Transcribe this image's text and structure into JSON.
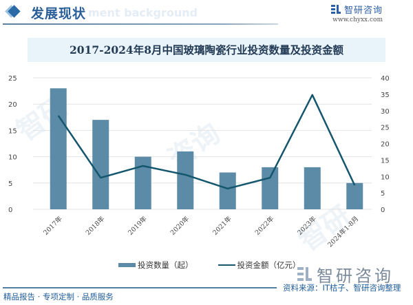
{
  "header": {
    "section_title": "发展现状",
    "section_subtitle": "ment background",
    "brand_name": "智研咨询",
    "brand_url": "www.chyxx.com"
  },
  "chart_title": "2017-2024年8月中国玻璃陶瓷行业投资数量及投资金额",
  "legend": {
    "bar_label": "投资数量（起）",
    "line_label": "投资金额（亿元）"
  },
  "footer": {
    "left_text": "精品报告 · 专项定制 · 品质服务",
    "brand_name": "智研咨询",
    "source": "资料来源：IT桔子、智研咨询整理"
  },
  "colors": {
    "bar": "#5b8ba6",
    "line": "#14566e",
    "grid": "#e3e3e3",
    "title_bg": "#e8f3fa",
    "accent": "#2a6aa6"
  },
  "chart_data": {
    "type": "bar",
    "title": "2017-2024年8月中国玻璃陶瓷行业投资数量及投资金额",
    "categories": [
      "2017年",
      "2018年",
      "2019年",
      "2020年",
      "2021年",
      "2022年",
      "2023年",
      "2024年1-8月"
    ],
    "series": [
      {
        "name": "投资数量（起）",
        "type": "bar",
        "axis": "left",
        "values": [
          23,
          17,
          10,
          11,
          7,
          8,
          8,
          5
        ]
      },
      {
        "name": "投资金额（亿元）",
        "type": "line",
        "axis": "right",
        "values": [
          28.5,
          9.6,
          13.2,
          10.5,
          6.3,
          9.6,
          34.8,
          7.3
        ]
      }
    ],
    "y_left": {
      "ylim": [
        0,
        25
      ],
      "ticks": [
        0,
        5,
        10,
        15,
        20,
        25
      ]
    },
    "y_right": {
      "ylim": [
        0,
        40
      ],
      "ticks": [
        0,
        5,
        10,
        15,
        20,
        25,
        30,
        35,
        40
      ]
    },
    "xlabel": "",
    "ylabel": "",
    "grid": true,
    "legend_position": "bottom"
  }
}
